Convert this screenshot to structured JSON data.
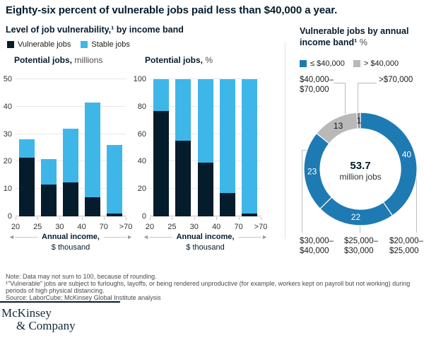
{
  "title": "Eighty-six percent of vulnerable jobs paid less than $40,000 a year.",
  "colors": {
    "navy": "#051c2c",
    "light_blue": "#3fb6e8",
    "donut_blue": "#1e7ab2",
    "gray": "#b9b9b9",
    "dark_gray": "#8c8c8c",
    "grid": "#e8e8e8"
  },
  "left_section": {
    "header": "Level of job vulnerability,¹ by income band",
    "legend": [
      {
        "label": "Vulnerable jobs",
        "color": "#051c2c"
      },
      {
        "label": "Stable jobs",
        "color": "#3fb6e8"
      }
    ],
    "axis_caption": {
      "line1": "Annual income,",
      "line2": "$ thousand"
    }
  },
  "chart_data": [
    {
      "type": "bar",
      "stacked": true,
      "title_bold": "Potential jobs,",
      "title_unit": "millions",
      "categories": [
        "20–25",
        "25–30",
        "30–40",
        "40–70",
        ">70"
      ],
      "x_edge_labels": [
        "20",
        "25",
        "30",
        "40",
        "70",
        ">70"
      ],
      "series": [
        {
          "name": "Vulnerable jobs",
          "color_key": "navy",
          "values": [
            21.5,
            11.5,
            12.5,
            7,
            1
          ]
        },
        {
          "name": "Stable jobs",
          "color_key": "light_blue",
          "values": [
            6.5,
            9.5,
            19.5,
            34.5,
            25
          ]
        }
      ],
      "ylim": [
        0,
        50
      ],
      "yticks": [
        0,
        10,
        20,
        30,
        40,
        50
      ],
      "xlabel": "Annual income, $ thousand",
      "grid": true,
      "legend_position": "top-left"
    },
    {
      "type": "bar",
      "stacked": true,
      "title_bold": "Potential jobs,",
      "title_unit": "%",
      "categories": [
        "20–25",
        "25–30",
        "30–40",
        "40–70",
        ">70"
      ],
      "x_edge_labels": [
        "20",
        "25",
        "30",
        "40",
        "70",
        ">70"
      ],
      "series": [
        {
          "name": "Vulnerable jobs",
          "color_key": "navy",
          "values": [
            77,
            55,
            39,
            17,
            2
          ]
        },
        {
          "name": "Stable jobs",
          "color_key": "light_blue",
          "values": [
            23,
            45,
            61,
            83,
            98
          ]
        }
      ],
      "ylim": [
        0,
        100
      ],
      "yticks": [
        0,
        20,
        40,
        60,
        80,
        100
      ],
      "xlabel": "Annual income, $ thousand",
      "grid": true
    },
    {
      "type": "pie",
      "subtype": "donut",
      "title": "Vulnerable jobs by annual income band¹ %",
      "center_value": "53.7",
      "center_label": "million jobs",
      "segments": [
        {
          "label": "$20,000–$25,000",
          "value": 40,
          "color_key": "donut_blue",
          "label_color": "#ffffff"
        },
        {
          "label": "$25,000–$30,000",
          "value": 22,
          "color_key": "donut_blue",
          "label_color": "#ffffff"
        },
        {
          "label": "$30,000–$40,000",
          "value": 23,
          "color_key": "donut_blue",
          "label_color": "#ffffff"
        },
        {
          "label": "$40,000–$70,000",
          "value": 13,
          "color_key": "gray",
          "label_color": "#051c2c"
        },
        {
          "label": ">$70,000",
          "value": 1,
          "color_key": "dark_gray",
          "label_color": "#051c2c"
        }
      ]
    }
  ],
  "right_section": {
    "header_line1": "Vulnerable jobs by annual",
    "header_line2_bold": "income band¹",
    "header_line2_unit": "%",
    "legend": [
      {
        "label": "≤ $40,000",
        "color": "#1e7ab2"
      },
      {
        "label": "> $40,000",
        "color": "#b9b9b9"
      }
    ],
    "callouts": {
      "top_left_line1": "$40,000–",
      "top_left_line2": "$70,000",
      "top_right": ">$70,000",
      "bottom_left_line1": "$30,000–",
      "bottom_left_line2": "$40,000",
      "bottom_mid_line1": "$25,000–",
      "bottom_mid_line2": "$30,000",
      "bottom_right_line1": "$20,000–",
      "bottom_right_line2": "$25,000"
    }
  },
  "notes": [
    "Note: Data may not sum to 100, because of rounding.",
    "¹\"Vulnerable\" jobs are subject to furloughs, layoffs, or being rendered unproductive (for example, workers kept on payroll but not working) during periods of high physical distancing.",
    "Source: LaborCube; McKinsey Global Institute analysis"
  ],
  "logo": {
    "line1": "McKinsey",
    "line2": "& Company"
  }
}
